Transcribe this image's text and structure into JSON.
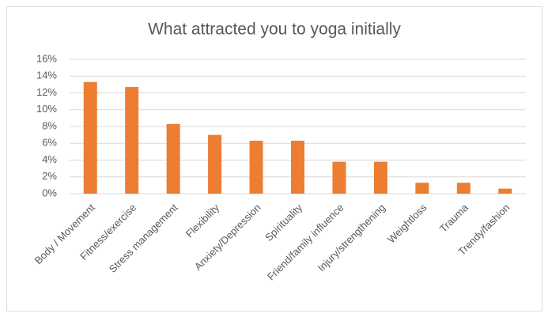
{
  "chart_data": {
    "type": "bar",
    "title": "What attracted you to yoga initially",
    "categories": [
      "Body / Movement",
      "Fitness/exercise",
      "Stress management",
      "Flexibility",
      "Anxiety/Depression",
      "Spirituality",
      "Friend/family influence",
      "Injury/strengthening",
      "Weightloss",
      "Trauma",
      "Trendy/fashion"
    ],
    "values": [
      13.3,
      12.7,
      8.3,
      7.0,
      6.3,
      6.3,
      3.8,
      3.8,
      1.3,
      1.3,
      0.6
    ],
    "color": "#ed7d31",
    "ylim": [
      0,
      16
    ],
    "yticks": [
      {
        "value": 0,
        "label": "0%"
      },
      {
        "value": 2,
        "label": "2%"
      },
      {
        "value": 4,
        "label": "4%"
      },
      {
        "value": 6,
        "label": "6%"
      },
      {
        "value": 8,
        "label": "8%"
      },
      {
        "value": 10,
        "label": "10%"
      },
      {
        "value": 12,
        "label": "12%"
      },
      {
        "value": 14,
        "label": "14%"
      },
      {
        "value": 16,
        "label": "16%"
      }
    ],
    "grid": true
  }
}
